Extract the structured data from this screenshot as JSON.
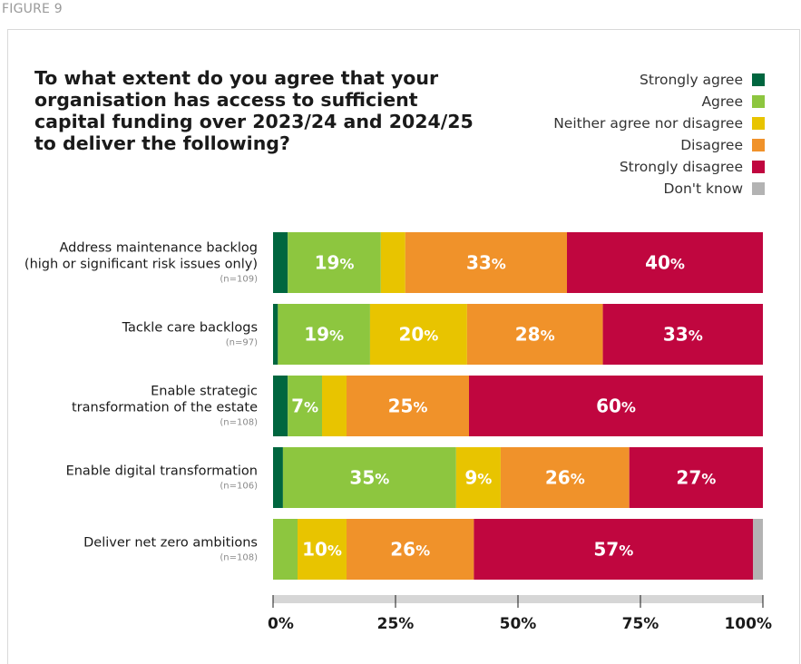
{
  "figure_label": "FIGURE 9",
  "colors": {
    "strongly_agree": "#00663f",
    "agree": "#8dc63f",
    "neither": "#e8c400",
    "disagree": "#f0922a",
    "strongly_disagree": "#c0063f",
    "dont_know": "#b3b3b3",
    "axis": "#d6d6d6"
  },
  "chart_data": {
    "type": "bar",
    "orientation": "horizontal",
    "stacked": true,
    "title": "To what extent do you agree that your\norganisation has access to sufficient\ncapital funding over 2023/24 and 2024/25\nto deliver the following?",
    "legend_position": "top-right",
    "series_names": [
      "Strongly agree",
      "Agree",
      "Neither agree nor disagree",
      "Disagree",
      "Strongly disagree",
      "Don't know"
    ],
    "categories": [
      {
        "label": "Address maintenance backlog\n(high or significant risk issues only)",
        "n": "(n=109)",
        "values": [
          3,
          19,
          5,
          33,
          40,
          0
        ],
        "labels": [
          "",
          "19",
          "",
          "33",
          "40",
          ""
        ]
      },
      {
        "label": "Tackle care backlogs",
        "n": "(n=97)",
        "values": [
          1,
          19,
          20,
          28,
          33,
          0
        ],
        "labels": [
          "",
          "19",
          "20",
          "28",
          "33",
          ""
        ]
      },
      {
        "label": "Enable strategic\ntransformation of the estate",
        "n": "(n=108)",
        "values": [
          3,
          7,
          5,
          25,
          60,
          0
        ],
        "labels": [
          "",
          "7",
          "",
          "25",
          "60",
          ""
        ]
      },
      {
        "label": "Enable digital transformation",
        "n": "(n=106)",
        "values": [
          2,
          35,
          9,
          26,
          27,
          0
        ],
        "labels": [
          "",
          "35",
          "9",
          "26",
          "27",
          ""
        ]
      },
      {
        "label": "Deliver net zero ambitions",
        "n": "(n=108)",
        "values": [
          0,
          5,
          10,
          26,
          57,
          2
        ],
        "labels": [
          "",
          "",
          "10",
          "26",
          "57",
          ""
        ]
      }
    ],
    "xlim": [
      0,
      100
    ],
    "xticks": [
      "0%",
      "25%",
      "50%",
      "75%",
      "100%"
    ],
    "grid": false
  }
}
